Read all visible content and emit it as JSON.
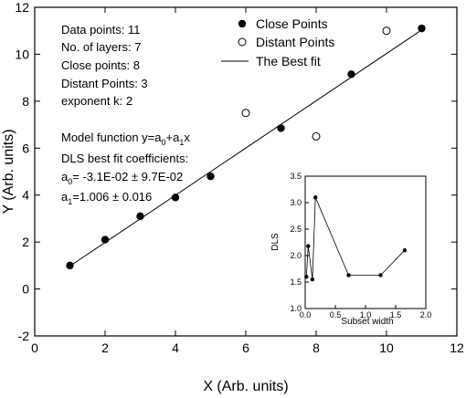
{
  "chart_data": [
    {
      "type": "scatter",
      "xlabel": "X (Arb. units)",
      "ylabel": "Y (Arb. units)",
      "xlim": [
        0,
        12
      ],
      "ylim": [
        -2,
        12
      ],
      "x_ticks": [
        0,
        2,
        4,
        6,
        8,
        10,
        12
      ],
      "y_ticks": [
        -2,
        0,
        2,
        4,
        6,
        8,
        10,
        12
      ],
      "grid": false,
      "legend_position": "top-right",
      "series": [
        {
          "name": "Close Points",
          "marker": "filled-circle",
          "points": [
            {
              "x": 1,
              "y": 1.0
            },
            {
              "x": 2,
              "y": 2.1
            },
            {
              "x": 3,
              "y": 3.1
            },
            {
              "x": 4,
              "y": 3.9
            },
            {
              "x": 5,
              "y": 4.8
            },
            {
              "x": 7,
              "y": 6.85
            },
            {
              "x": 9,
              "y": 9.15
            },
            {
              "x": 11,
              "y": 11.1
            }
          ]
        },
        {
          "name": "Distant Points",
          "marker": "open-circle",
          "points": [
            {
              "x": 6,
              "y": 7.5
            },
            {
              "x": 8,
              "y": 6.5
            },
            {
              "x": 10,
              "y": 11.0
            }
          ]
        },
        {
          "name": "The Best fit",
          "marker": "line",
          "points": [
            {
              "x": 1,
              "y": 0.975
            },
            {
              "x": 11,
              "y": 11.035
            }
          ]
        }
      ],
      "annotations": {
        "stats": [
          "Data points:  11",
          "No. of layers: 7",
          "Close points:  8",
          "Distant Points: 3",
          "exponent k:  2"
        ],
        "model_prefix": "Model function y=a",
        "model_sub0": "0",
        "model_mid": "+a",
        "model_sub1": "1",
        "model_suffix": "x",
        "fit_heading": "DLS best fit coefficients:",
        "a0_symbol": "a",
        "a0_sub": "0",
        "a0_value": "= -3.1E-02 ± 9.7E-02",
        "a1_symbol": "a",
        "a1_sub": "1",
        "a1_value": "=1.006 ± 0.016"
      }
    },
    {
      "type": "line",
      "xlabel": "Subset width",
      "ylabel": "DLS",
      "xlim": [
        0.0,
        2.0
      ],
      "ylim": [
        1.0,
        3.5
      ],
      "x_ticks": [
        "0.0",
        "0.5",
        "1.0",
        "1.5",
        "2.0"
      ],
      "y_ticks": [
        "1.0",
        "1.5",
        "2.0",
        "2.5",
        "3.0",
        "3.5"
      ],
      "grid": false,
      "marker": "filled-circle",
      "points": [
        {
          "x": 0.02,
          "y": 1.6
        },
        {
          "x": 0.05,
          "y": 2.18
        },
        {
          "x": 0.12,
          "y": 1.55
        },
        {
          "x": 0.17,
          "y": 3.1
        },
        {
          "x": 0.72,
          "y": 1.63
        },
        {
          "x": 1.25,
          "y": 1.63
        },
        {
          "x": 1.65,
          "y": 2.1
        }
      ]
    }
  ]
}
